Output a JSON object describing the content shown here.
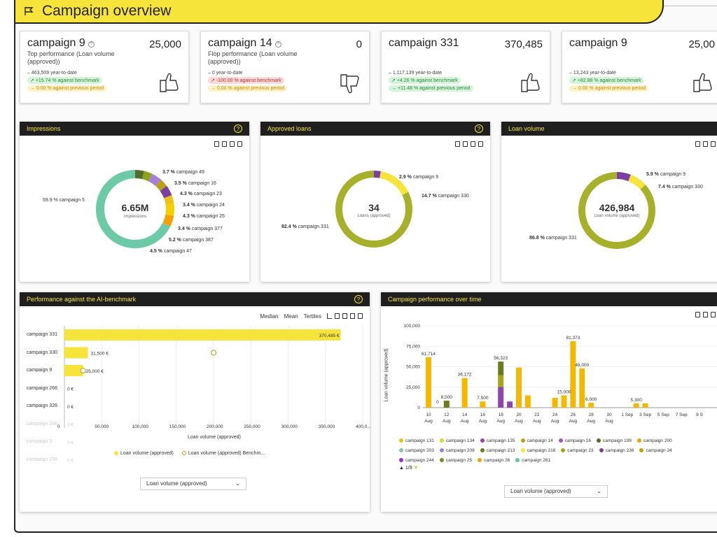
{
  "header": {
    "title": "Campaign overview"
  },
  "kpis": [
    {
      "name": "campaign 9",
      "sub": "Top performance (Loan volume (approved))",
      "value": "25,000",
      "ytd": "463,509 year-to-date",
      "bench": "+15.74 % against benchmark",
      "bench_tone": "green",
      "prev": "0.00 % against previous period",
      "thumb": "thumbs-up"
    },
    {
      "name": "campaign 14",
      "sub": "Flop performance (Loan volume (approved))",
      "value": "0",
      "ytd": "0 year-to-date",
      "bench": "-100.00 % against benchmark",
      "bench_tone": "red",
      "prev": "0.00 % against previous period",
      "thumb": "thumbs-down"
    },
    {
      "name": "campaign 331",
      "sub": "",
      "value": "370,485",
      "ytd": "1,117,139 year-to-date",
      "bench": "+4.26 % against benchmark",
      "bench_tone": "green",
      "prev": "+11.48 % against previous period",
      "prev_tone": "green",
      "thumb": "thumbs-up"
    },
    {
      "name": "campaign 9",
      "sub": "",
      "value": "25,00",
      "ytd": "13,243 year-to-date",
      "bench": "+82.88 % against benchmark",
      "bench_tone": "green",
      "prev": "0.00 % against previous period",
      "thumb": "thumbs-up"
    }
  ],
  "impressions": {
    "title": "Impressions",
    "center_value": "6.65M",
    "center_label": "Impressions",
    "left_label": "59.9 % campaign 5",
    "labels": [
      {
        "pct": "3.7 %",
        "name": "campaign 49"
      },
      {
        "pct": "3.5 %",
        "name": "campaign 16"
      },
      {
        "pct": "4.3 %",
        "name": "campaign 23"
      },
      {
        "pct": "3.4 %",
        "name": "campaign 24"
      },
      {
        "pct": "4.3 %",
        "name": "campaign 25"
      },
      {
        "pct": "3.4 %",
        "name": "campaign 377"
      },
      {
        "pct": "5.2 %",
        "name": "campaign 387"
      },
      {
        "pct": "4.5 %",
        "name": "campaign 47"
      }
    ]
  },
  "approved": {
    "title": "Approved loans",
    "center_value": "34",
    "center_label": "Loans (approved)",
    "labels": [
      {
        "pct": "2.9 %",
        "name": "campaign 9"
      },
      {
        "pct": "14.7 %",
        "name": "campaign 330"
      },
      {
        "pct": "82.4 %",
        "name": "campaign 331"
      }
    ]
  },
  "volume": {
    "title": "Loan volume",
    "center_value": "426,984",
    "center_label": "Loan volume (approved)",
    "labels": [
      {
        "pct": "5.9 %",
        "name": "campaign 9"
      },
      {
        "pct": "7.4 %",
        "name": "campaign 330"
      },
      {
        "pct": "86.8 %",
        "name": "campaign 331"
      }
    ]
  },
  "benchmark": {
    "title": "Performance against the AI-benchmark",
    "options": [
      "Median",
      "Mean",
      "Tertiles"
    ],
    "categories": [
      "campaign 331",
      "campaign 330",
      "campaign 9",
      "campaign 266",
      "campaign 326",
      "campaign 206",
      "campaign 3",
      "campaign 208"
    ],
    "bar_labels": [
      "370,485 €",
      "31,500 €",
      "25,000 €",
      "0 €",
      "0 €",
      "0 €",
      "0 €",
      "0 €"
    ],
    "ticks": [
      "0",
      "50,000",
      "100,000",
      "150,000",
      "200,000",
      "250,000",
      "300,000",
      "350,000",
      "400,0..."
    ],
    "axis_label": "Loan volume (approved)",
    "legend": [
      "Loan volume (approved)",
      "Loan volume (approved) Benchm..."
    ],
    "select": "Loan volume (approved)"
  },
  "time": {
    "title": "Campaign performance over time",
    "ylabel": "Loan volume (approved)",
    "yticks": [
      "100,000",
      "75,000",
      "50,000",
      "25,000",
      "0"
    ],
    "xticks": [
      [
        "10",
        "Aug"
      ],
      [
        "12",
        "Aug"
      ],
      [
        "14",
        "Aug"
      ],
      [
        "16",
        "Aug"
      ],
      [
        "18",
        "Aug"
      ],
      [
        "20",
        "Aug"
      ],
      [
        "22",
        "Aug"
      ],
      [
        "24",
        "Aug"
      ],
      [
        "26",
        "Aug"
      ],
      [
        "28",
        "Aug"
      ],
      [
        "30",
        "Aug"
      ],
      [
        "1 Sep",
        ""
      ],
      [
        "3 Sep",
        ""
      ],
      [
        "5 Sep",
        ""
      ],
      [
        "7 Sep",
        ""
      ],
      [
        "9 S",
        ""
      ]
    ],
    "legend": [
      {
        "name": "campaign 131",
        "color": "#e9c21a"
      },
      {
        "name": "campaign 134",
        "color": "#cddc39"
      },
      {
        "name": "campaign 135",
        "color": "#8e44ad"
      },
      {
        "name": "campaign 14",
        "color": "#b5a21a"
      },
      {
        "name": "campaign 16",
        "color": "#9b59b6"
      },
      {
        "name": "campaign 199",
        "color": "#556b2f"
      },
      {
        "name": "campaign 200",
        "color": "#f5a000"
      },
      {
        "name": "campaign 203",
        "color": "#7fc9a3"
      },
      {
        "name": "campaign 209",
        "color": "#a77fd6"
      },
      {
        "name": "campaign 213",
        "color": "#6b7c1a"
      },
      {
        "name": "campaign 216",
        "color": "#f7e43a"
      },
      {
        "name": "campaign 23",
        "color": "#a0a81a"
      },
      {
        "name": "campaign 238",
        "color": "#7b3fa0"
      },
      {
        "name": "campaign 24",
        "color": "#c8a000"
      },
      {
        "name": "campaign 244",
        "color": "#9b30d0"
      },
      {
        "name": "campaign 25",
        "color": "#7d8a2e"
      },
      {
        "name": "campaign 26",
        "color": "#f5a000"
      },
      {
        "name": "campaign 261",
        "color": "#5cc8a8"
      }
    ],
    "pager": "1/9",
    "select": "Loan volume (approved)"
  },
  "chart_data": [
    {
      "type": "bar",
      "title": "Performance against the AI-benchmark",
      "orientation": "horizontal",
      "categories": [
        "campaign 331",
        "campaign 330",
        "campaign 9",
        "campaign 266",
        "campaign 326",
        "campaign 206",
        "campaign 3",
        "campaign 208"
      ],
      "series": [
        {
          "name": "Loan volume (approved)",
          "values": [
            370485,
            31500,
            25000,
            0,
            0,
            0,
            0,
            0
          ]
        },
        {
          "name": "Loan volume (approved) Benchm...",
          "values": [
            null,
            200000,
            25000,
            null,
            null,
            null,
            null,
            null
          ]
        }
      ],
      "xlabel": "Loan volume (approved)",
      "xlim": [
        0,
        400000
      ]
    },
    {
      "type": "bar",
      "title": "Campaign performance over time",
      "ylabel": "Loan volume (approved)",
      "ylim": [
        0,
        100000
      ],
      "x": [
        "10 Aug",
        "11 Aug",
        "12 Aug",
        "13 Aug",
        "14 Aug",
        "15 Aug",
        "16 Aug",
        "17 Aug",
        "18 Aug",
        "19 Aug",
        "20 Aug",
        "21 Aug",
        "22 Aug",
        "23 Aug",
        "24 Aug",
        "25 Aug",
        "26 Aug",
        "27 Aug",
        "28 Aug",
        "29 Aug",
        "30 Aug",
        "31 Aug",
        "1 Sep",
        "2 Sep",
        "3 Sep",
        "4 Sep",
        "5 Sep",
        "6 Sep",
        "7 Sep",
        "8 Sep",
        "9 Sep"
      ],
      "totals": [
        61714,
        0,
        8500,
        0,
        36172,
        0,
        7500,
        0,
        56323,
        7500,
        49000,
        15000,
        0,
        0,
        12000,
        15000,
        81373,
        48000,
        6000,
        0,
        0,
        0,
        0,
        5300,
        5300,
        0,
        0,
        0,
        0,
        0,
        0
      ],
      "data_labels": [
        "61,714",
        "0",
        "8,500",
        "36,172",
        "56,323",
        "7,500",
        "15,000",
        "81,373",
        "48,000",
        "6,000",
        "5,300"
      ]
    }
  ]
}
